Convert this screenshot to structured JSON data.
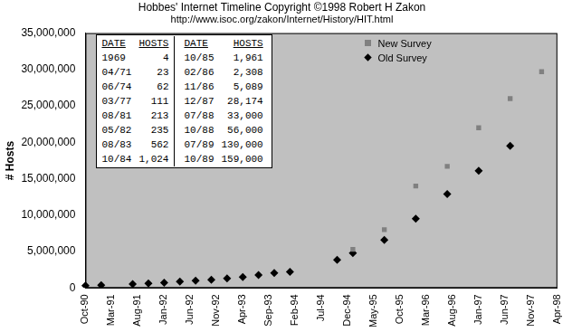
{
  "chart_data": {
    "type": "scatter",
    "title": "Hobbes' Internet Timeline Copyright ©1998 Robert H Zakon",
    "subtitle": "http://www.isoc.org/zakon/Internet/History/HIT.html",
    "y_label": "# Hosts",
    "categories": [
      "Oct-90",
      null,
      null,
      null,
      null,
      "Mar-91",
      null,
      null,
      null,
      null,
      "Aug-91",
      null,
      null,
      null,
      null,
      "Jan-92",
      null,
      null,
      null,
      null,
      "Jun-92",
      null,
      null,
      null,
      null,
      "Nov-92",
      null,
      null,
      null,
      null,
      "Apr-93",
      null,
      null,
      null,
      null,
      "Sep-93",
      null,
      null,
      null,
      null,
      "Feb-94",
      null,
      null,
      null,
      null,
      "Jul-94",
      null,
      null,
      null,
      null,
      "Dec-94",
      null,
      null,
      null,
      null,
      "May-95",
      null,
      null,
      null,
      null,
      "Oct-95",
      null,
      null,
      null,
      null,
      "Mar-96",
      null,
      null,
      null,
      null,
      "Aug-96",
      null,
      null,
      null,
      null,
      "Jan-97",
      null,
      null,
      null,
      null,
      "Jun-97",
      null,
      null,
      null,
      null,
      "Nov-97",
      null,
      null,
      null,
      null,
      "Apr-98"
    ],
    "series": [
      {
        "name": "New Survey",
        "color": "#808080",
        "marker": "square",
        "values": [
          null,
          null,
          null,
          null,
          null,
          null,
          null,
          null,
          null,
          null,
          null,
          null,
          null,
          null,
          null,
          null,
          null,
          null,
          null,
          null,
          null,
          null,
          null,
          null,
          null,
          null,
          null,
          null,
          null,
          null,
          null,
          null,
          null,
          null,
          null,
          null,
          null,
          null,
          null,
          null,
          null,
          null,
          null,
          null,
          null,
          null,
          null,
          null,
          null,
          null,
          null,
          5300000,
          null,
          null,
          null,
          null,
          null,
          8000000,
          null,
          null,
          null,
          null,
          null,
          14000000,
          null,
          null,
          null,
          null,
          null,
          16700000,
          null,
          null,
          null,
          null,
          null,
          22000000,
          null,
          null,
          null,
          null,
          null,
          26000000,
          null,
          null,
          null,
          null,
          null,
          29700000,
          null,
          null,
          null
        ]
      },
      {
        "name": "Old Survey",
        "color": "#000000",
        "marker": "diamond",
        "values": [
          313000,
          null,
          null,
          376000,
          null,
          null,
          null,
          null,
          null,
          535000,
          null,
          null,
          617000,
          null,
          null,
          727000,
          null,
          null,
          890000,
          null,
          null,
          992000,
          null,
          null,
          1136000,
          null,
          null,
          1313000,
          null,
          null,
          1486000,
          null,
          null,
          1776000,
          null,
          null,
          2056000,
          null,
          null,
          2217000,
          null,
          null,
          null,
          null,
          null,
          null,
          null,
          null,
          3864000,
          null,
          null,
          4800000,
          null,
          null,
          null,
          null,
          null,
          6600000,
          null,
          null,
          null,
          null,
          null,
          9500000,
          null,
          null,
          null,
          null,
          null,
          12900000,
          null,
          null,
          null,
          null,
          null,
          16100000,
          null,
          null,
          null,
          null,
          null,
          19500000,
          null,
          null,
          null,
          null,
          null,
          null,
          null,
          null,
          null
        ]
      }
    ],
    "ylim": [
      0,
      35000000
    ],
    "yticks": [
      0,
      {
        "value": 5000000,
        "label": "5,000,000"
      },
      {
        "value": 10000000,
        "label": "10,000,000"
      },
      {
        "value": 15000000,
        "label": "15,000,000"
      },
      {
        "value": 20000000,
        "label": "20,000,000"
      },
      {
        "value": 25000000,
        "label": "25,000,000"
      },
      {
        "value": 30000000,
        "label": "30,000,000"
      },
      {
        "value": 35000000,
        "label": "35,000,000"
      }
    ],
    "grid": false,
    "legend": "top right"
  },
  "table": {
    "header": [
      "DATE",
      "HOSTS",
      "DATE",
      "HOSTS"
    ],
    "rows": [
      [
        "1969",
        "4",
        "10/85",
        "1,961"
      ],
      [
        "04/71",
        "23",
        "02/86",
        "2,308"
      ],
      [
        "06/74",
        "62",
        "11/86",
        "5,089"
      ],
      [
        "03/77",
        "111",
        "12/87",
        "28,174"
      ],
      [
        "08/81",
        "213",
        "07/88",
        "33,000"
      ],
      [
        "05/82",
        "235",
        "10/88",
        "56,000"
      ],
      [
        "08/83",
        "562",
        "07/89",
        "130,000"
      ],
      [
        "10/84",
        "1,024",
        "10/89",
        "159,000"
      ]
    ]
  }
}
